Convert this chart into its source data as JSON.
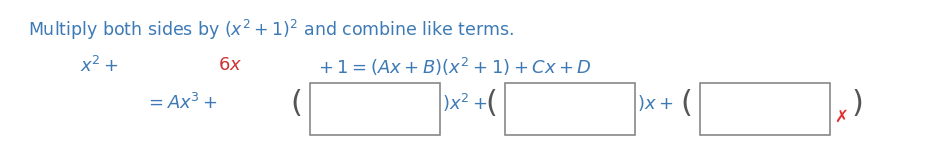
{
  "title_color": "#3d7ab5",
  "math_color_blue": "#3d7ab5",
  "math_color_red": "#cc3333",
  "box_edge_color": "#888888",
  "background": "#ffffff",
  "x_mark_color": "#e03030",
  "title_line": "Multiply both sides by (x² + 1)² and combine like terms.",
  "eq_line": "x² + 6x + 1 = (Ax + B)(x² + 1) + Cx + D",
  "line3_prefix": "= Ax³ + ",
  "paren_fontsize": 22,
  "text_fontsize": 13,
  "title_fontsize": 12.5
}
